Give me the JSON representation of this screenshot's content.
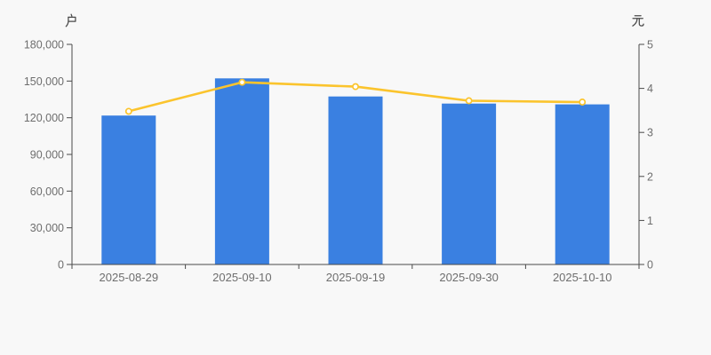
{
  "chart": {
    "background": "#f8f8f8",
    "bar_color": "#3a80e1",
    "line_color": "#fbc42d",
    "marker_fill": "#ffffff",
    "axis_color": "#4a4a4a",
    "label_color": "#6e6e6e"
  },
  "chart_data": {
    "type": "bar",
    "combo": [
      "bar",
      "line"
    ],
    "title": "",
    "categories": [
      "2025-08-29",
      "2025-09-10",
      "2025-09-19",
      "2025-09-30",
      "2025-10-10"
    ],
    "series": [
      {
        "type": "bar",
        "y_axis": "left",
        "values": [
          121800,
          152200,
          137400,
          131600,
          130900
        ]
      },
      {
        "type": "line",
        "y_axis": "right",
        "values": [
          3.48,
          4.14,
          4.04,
          3.72,
          3.69
        ]
      }
    ],
    "y_left": {
      "unit": "户",
      "min": 0,
      "max": 180000,
      "step": 30000,
      "ticks": [
        "0",
        "30,000",
        "60,000",
        "90,000",
        "120,000",
        "150,000",
        "180,000"
      ]
    },
    "y_right": {
      "unit": "元",
      "min": 0,
      "max": 5,
      "step": 1,
      "ticks": [
        "0",
        "1",
        "2",
        "3",
        "4",
        "5"
      ]
    },
    "legend_position": "none",
    "grid": false
  }
}
